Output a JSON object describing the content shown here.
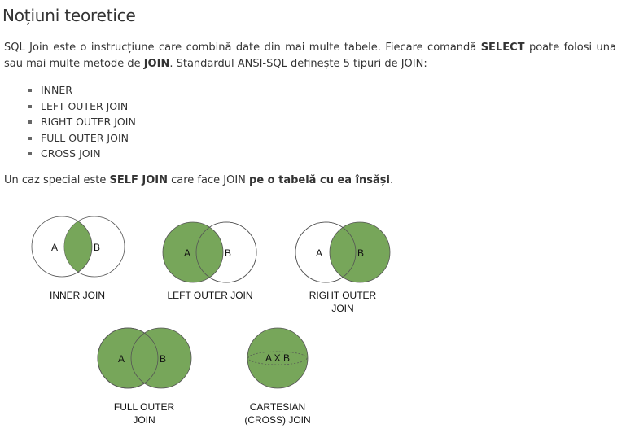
{
  "page": {
    "title": "Noțiuni teoretice",
    "intro": {
      "t1": "SQL Join este o instrucțiune care combină date din mai multe tabele. Fiecare comandă ",
      "b1": "SELECT",
      "t2": " poate folosi una sau mai multe metode de ",
      "b2": "JOIN",
      "t3": ". Standardul ANSI-SQL definește 5 tipuri de JOIN:"
    },
    "join_types": [
      "INNER",
      "LEFT OUTER JOIN",
      "RIGHT OUTER JOIN",
      "FULL OUTER JOIN",
      "CROSS JOIN"
    ],
    "special": {
      "t1": "Un caz special este ",
      "b1": "SELF JOIN",
      "t2": " care face JOIN ",
      "b2": "pe o tabelă cu ea însăși",
      "t3": "."
    }
  },
  "diagrams": {
    "fill_color": "#77a65a",
    "stroke_color": "#555555",
    "set_a": "A",
    "set_b": "B",
    "inner": {
      "caption": "INNER JOIN"
    },
    "left": {
      "caption": "LEFT OUTER JOIN"
    },
    "right": {
      "caption_line1": "RIGHT OUTER",
      "caption_line2": "JOIN"
    },
    "full": {
      "caption_line1": "FULL OUTER",
      "caption_line2": "JOIN"
    },
    "cross": {
      "set_label": "A X B",
      "caption_line1": "CARTESIAN",
      "caption_line2": "(CROSS) JOIN"
    }
  }
}
